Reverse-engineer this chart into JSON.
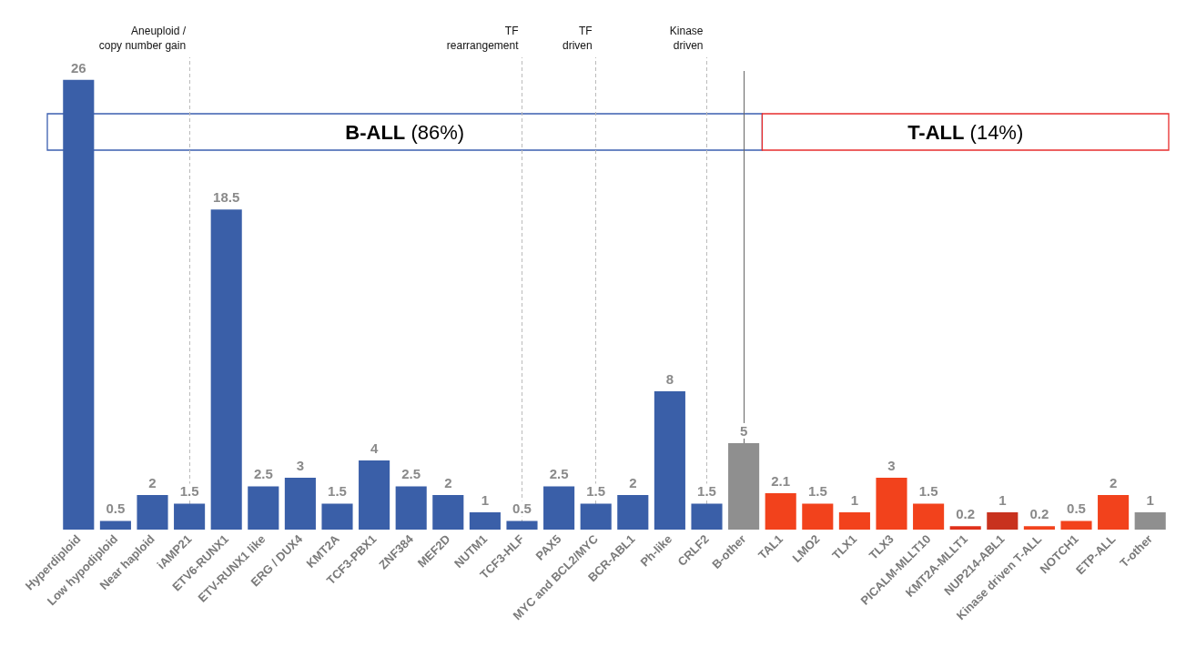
{
  "chart_data": {
    "type": "bar",
    "categories": [
      "Hyperdiploid",
      "Low hypodiploid",
      "Near haploid",
      "iAMP21",
      "ETV6-RUNX1",
      "ETV-RUNX1 like",
      "ERG / DUX4",
      "KMT2A",
      "TCF3-PBX1",
      "ZNF384",
      "MEF2D",
      "NUTM1",
      "TCF3-HLF",
      "PAX5",
      "MYC and BCL2/MYC",
      "BCR-ABL1",
      "Ph-like",
      "CRLF2",
      "B-other",
      "TAL1",
      "LMO2",
      "TLX1",
      "TLX3",
      "PICALM-MLLT10",
      "KMT2A-MLLT1",
      "NUP214-ABL1",
      "Kinase driven T-ALL",
      "NOTCH1",
      "ETP-ALL",
      "T-other"
    ],
    "values": [
      26,
      0.5,
      2,
      1.5,
      18.5,
      2.5,
      3,
      1.5,
      4,
      2.5,
      2,
      1,
      0.5,
      2.5,
      1.5,
      2,
      8,
      1.5,
      5,
      2.1,
      1.5,
      1,
      3,
      1.5,
      0.2,
      1,
      0.2,
      0.5,
      2,
      1
    ],
    "colors": [
      "#3a5fa8",
      "#3a5fa8",
      "#3a5fa8",
      "#3a5fa8",
      "#3a5fa8",
      "#3a5fa8",
      "#3a5fa8",
      "#3a5fa8",
      "#3a5fa8",
      "#3a5fa8",
      "#3a5fa8",
      "#3a5fa8",
      "#3a5fa8",
      "#3a5fa8",
      "#3a5fa8",
      "#3a5fa8",
      "#3a5fa8",
      "#3a5fa8",
      "#8f8f8f",
      "#f2421c",
      "#f2421c",
      "#f2421c",
      "#f2421c",
      "#f2421c",
      "#e0301a",
      "#c8321e",
      "#f2421c",
      "#f2421c",
      "#f2421c",
      "#8f8f8f"
    ],
    "data_labels": true,
    "tick_labels": "x",
    "ref_lines": [
      {
        "axis": "x",
        "value": "iAMP21",
        "label": "Aneuploid /\ncopy number gain",
        "line_style": "dashed",
        "color": "#bbbbbb"
      },
      {
        "axis": "x",
        "value": "TCF3-HLF",
        "label": "TF\nrearrangement",
        "line_style": "dashed",
        "color": "#bbbbbb"
      },
      {
        "axis": "x",
        "value": "MYC and BCL2/MYC",
        "label": "TF\ndriven",
        "line_style": "dashed",
        "color": "#bbbbbb"
      },
      {
        "axis": "x",
        "value": "CRLF2",
        "label": "Kinase\ndriven",
        "line_style": "dashed",
        "color": "#bbbbbb"
      },
      {
        "axis": "x",
        "value": "B-other",
        "label": null,
        "line_style": "solid",
        "color": "#666666"
      }
    ],
    "bands": [
      {
        "axis": "x",
        "from": "Hyperdiploid",
        "to": "B-other",
        "label": "B-ALL (86%)",
        "color": "#3b5fb0"
      },
      {
        "axis": "x",
        "from": "TAL1",
        "to": "T-other",
        "label": "T-ALL (14%)",
        "color": "#e82c2c"
      }
    ]
  }
}
